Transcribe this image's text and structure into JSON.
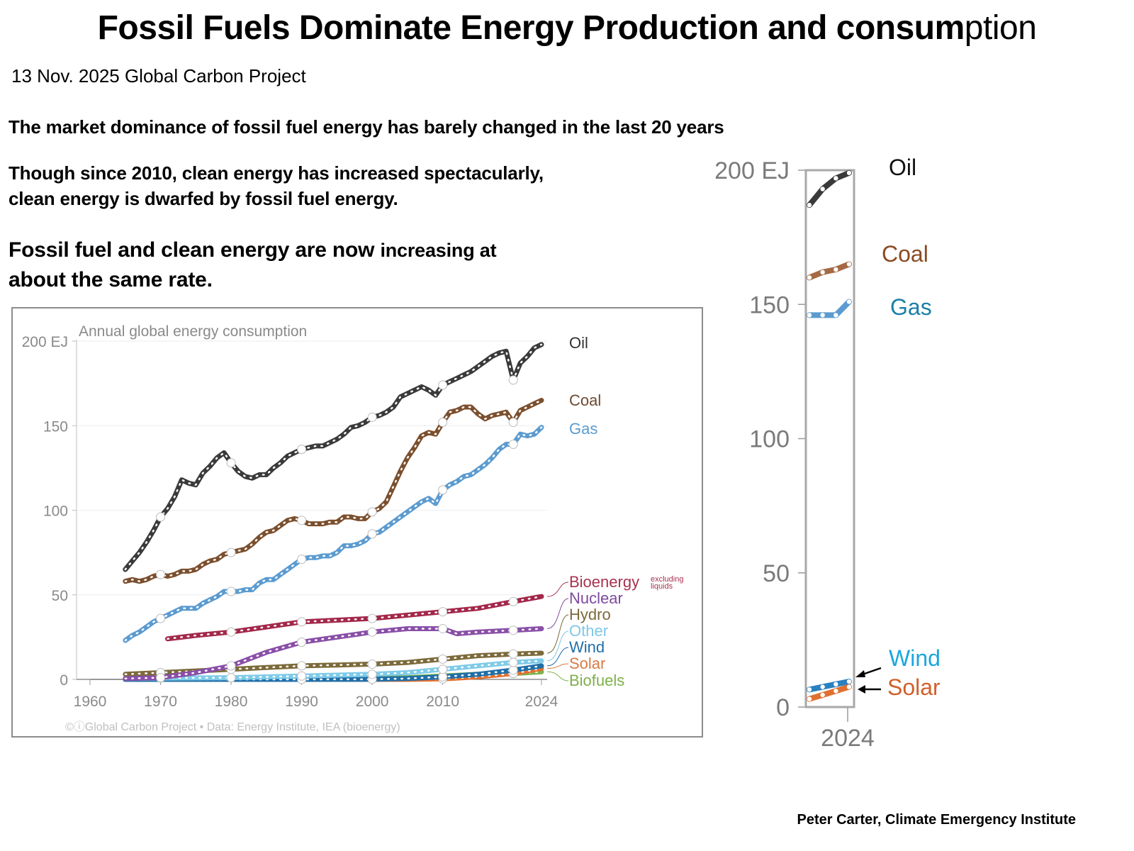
{
  "header": {
    "title_bold": "Fossil Fuels Dominate Energy Production and consum",
    "title_light": "ption",
    "dateline": "13 Nov. 2025 Global Carbon Project"
  },
  "text": {
    "p1": "The market dominance of fossil fuel energy has barely changed in the last 20 years",
    "p2_line1": "Though since 2010, clean energy has increased spectacularly,",
    "p2_line2": "clean energy is dwarfed by fossil fuel energy.",
    "p3_line1_a": "Fossil fuel and clean energy are now ",
    "p3_line1_b": "increasing at",
    "p3_line2": "about the same rate."
  },
  "credit": "Peter Carter, Climate Emergency Institute",
  "chart_data": [
    {
      "type": "line",
      "title": "Annual global energy consumption",
      "ylabel": "EJ",
      "xlim": [
        1960,
        2024
      ],
      "ylim": [
        0,
        200
      ],
      "x_ticks": [
        "1960",
        "1970",
        "1980",
        "1990",
        "2000",
        "2010",
        "2024"
      ],
      "y_ticks": [
        "0",
        "50",
        "100",
        "150",
        "200 EJ"
      ],
      "grid": true,
      "legend": "right (direct labels)",
      "footer": "©ⓘGlobal Carbon Project  •  Data: Energy Institute, IEA (bioenergy)",
      "bioenergy_note": "excluding liquids",
      "series": [
        {
          "name": "Oil",
          "color": "#3a3a3a",
          "label_color": "#333333",
          "x": [
            1965,
            1966,
            1967,
            1968,
            1969,
            1970,
            1971,
            1972,
            1973,
            1974,
            1975,
            1976,
            1977,
            1978,
            1979,
            1980,
            1981,
            1982,
            1983,
            1984,
            1985,
            1986,
            1987,
            1988,
            1989,
            1990,
            1991,
            1992,
            1993,
            1994,
            1995,
            1996,
            1997,
            1998,
            1999,
            2000,
            2001,
            2002,
            2003,
            2004,
            2005,
            2006,
            2007,
            2008,
            2009,
            2010,
            2011,
            2012,
            2013,
            2014,
            2015,
            2016,
            2017,
            2018,
            2019,
            2020,
            2021,
            2022,
            2023,
            2024
          ],
          "values": [
            65,
            70,
            75,
            81,
            88,
            96,
            101,
            108,
            118,
            116,
            115,
            122,
            126,
            131,
            134,
            128,
            123,
            120,
            119,
            121,
            121,
            125,
            128,
            132,
            134,
            136,
            137,
            138,
            138,
            140,
            142,
            145,
            149,
            150,
            152,
            155,
            156,
            158,
            161,
            167,
            169,
            171,
            173,
            171,
            168,
            174,
            176,
            178,
            180,
            182,
            185,
            188,
            191,
            193,
            194,
            177,
            187,
            191,
            196,
            198
          ]
        },
        {
          "name": "Coal",
          "color": "#7b4f2e",
          "label_color": "#6e4a30",
          "x": [
            1965,
            1966,
            1967,
            1968,
            1969,
            1970,
            1971,
            1972,
            1973,
            1974,
            1975,
            1976,
            1977,
            1978,
            1979,
            1980,
            1981,
            1982,
            1983,
            1984,
            1985,
            1986,
            1987,
            1988,
            1989,
            1990,
            1991,
            1992,
            1993,
            1994,
            1995,
            1996,
            1997,
            1998,
            1999,
            2000,
            2001,
            2002,
            2003,
            2004,
            2005,
            2006,
            2007,
            2008,
            2009,
            2010,
            2011,
            2012,
            2013,
            2014,
            2015,
            2016,
            2017,
            2018,
            2019,
            2020,
            2021,
            2022,
            2023,
            2024
          ],
          "values": [
            58,
            59,
            58,
            59,
            61,
            62,
            61,
            62,
            64,
            64,
            65,
            68,
            70,
            71,
            74,
            75,
            76,
            77,
            80,
            84,
            87,
            88,
            91,
            94,
            95,
            94,
            92,
            92,
            92,
            93,
            93,
            96,
            96,
            95,
            95,
            99,
            101,
            105,
            114,
            123,
            131,
            137,
            144,
            146,
            145,
            152,
            158,
            159,
            161,
            161,
            157,
            154,
            156,
            157,
            158,
            152,
            159,
            161,
            163,
            165
          ]
        },
        {
          "name": "Gas",
          "color": "#5b9bd0",
          "label_color": "#5b9bd0",
          "x": [
            1965,
            1966,
            1967,
            1968,
            1969,
            1970,
            1971,
            1972,
            1973,
            1974,
            1975,
            1976,
            1977,
            1978,
            1979,
            1980,
            1981,
            1982,
            1983,
            1984,
            1985,
            1986,
            1987,
            1988,
            1989,
            1990,
            1991,
            1992,
            1993,
            1994,
            1995,
            1996,
            1997,
            1998,
            1999,
            2000,
            2001,
            2002,
            2003,
            2004,
            2005,
            2006,
            2007,
            2008,
            2009,
            2010,
            2011,
            2012,
            2013,
            2014,
            2015,
            2016,
            2017,
            2018,
            2019,
            2020,
            2021,
            2022,
            2023,
            2024
          ],
          "values": [
            23,
            26,
            28,
            31,
            34,
            36,
            38,
            40,
            42,
            42,
            42,
            45,
            47,
            49,
            52,
            52,
            52,
            53,
            53,
            57,
            59,
            59,
            62,
            65,
            68,
            71,
            72,
            72,
            73,
            73,
            75,
            79,
            79,
            80,
            82,
            86,
            87,
            90,
            93,
            96,
            99,
            102,
            105,
            107,
            104,
            112,
            115,
            117,
            120,
            121,
            124,
            127,
            131,
            136,
            139,
            139,
            145,
            144,
            145,
            149
          ]
        },
        {
          "name": "Bioenergy",
          "color": "#a3284a",
          "label_color": "#a8324f",
          "x": [
            1971,
            1975,
            1980,
            1985,
            1990,
            1995,
            2000,
            2005,
            2010,
            2015,
            2020,
            2024
          ],
          "values": [
            24,
            26,
            28,
            31,
            34,
            35,
            36,
            38,
            40,
            42,
            46,
            49
          ]
        },
        {
          "name": "Nuclear",
          "color": "#8a4fa8",
          "label_color": "#7d4a9e",
          "x": [
            1965,
            1970,
            1975,
            1980,
            1985,
            1990,
            1995,
            2000,
            2005,
            2010,
            2012,
            2015,
            2020,
            2024
          ],
          "values": [
            0.5,
            1,
            4,
            8,
            16,
            22,
            25,
            28,
            30,
            30,
            27,
            28,
            29,
            30
          ]
        },
        {
          "name": "Hydro",
          "color": "#7c6a3a",
          "label_color": "#7c6a3a",
          "x": [
            1965,
            1970,
            1975,
            1980,
            1985,
            1990,
            1995,
            2000,
            2005,
            2010,
            2015,
            2020,
            2024
          ],
          "values": [
            3,
            4,
            5,
            6,
            7,
            8,
            8.5,
            9,
            10,
            12,
            14,
            15,
            15.5
          ]
        },
        {
          "name": "Other",
          "color": "#7fcbe8",
          "label_color": "#7fc7e6",
          "x": [
            1965,
            1970,
            1980,
            1990,
            2000,
            2005,
            2010,
            2015,
            2020,
            2024
          ],
          "values": [
            0.5,
            0.8,
            1,
            2,
            3,
            4,
            6,
            8,
            10,
            11
          ]
        },
        {
          "name": "Wind",
          "color": "#1f6fa8",
          "label_color": "#1f6fa8",
          "x": [
            1965,
            1990,
            2000,
            2005,
            2010,
            2015,
            2020,
            2024
          ],
          "values": [
            0,
            0,
            0.1,
            0.5,
            1.5,
            3,
            5.5,
            8
          ]
        },
        {
          "name": "Solar",
          "color": "#e07030",
          "label_color": "#d87b45",
          "x": [
            1965,
            2005,
            2010,
            2015,
            2020,
            2024
          ],
          "values": [
            0,
            0,
            0.3,
            1.5,
            3.5,
            6.5
          ]
        },
        {
          "name": "Biofuels",
          "color": "#7db04a",
          "label_color": "#7db04a",
          "x": [
            1965,
            1990,
            2000,
            2005,
            2010,
            2015,
            2020,
            2024
          ],
          "values": [
            0,
            0.3,
            0.5,
            1,
            2,
            3,
            3.5,
            4.5
          ]
        }
      ]
    },
    {
      "type": "line",
      "title": "Zoom on 2024",
      "ylabel": "EJ",
      "x_ticks": [
        "2024"
      ],
      "y_ticks": [
        "0",
        "50",
        "100",
        "150",
        "200 EJ"
      ],
      "ylim": [
        0,
        200
      ],
      "xlim": [
        2021,
        2024
      ],
      "series": [
        {
          "name": "Oil",
          "color": "#3a3a3a",
          "label_color": "#111111",
          "x": [
            2021,
            2022,
            2023,
            2024
          ],
          "values": [
            187,
            193,
            197,
            199
          ]
        },
        {
          "name": "Coal",
          "color": "#a56a44",
          "label_color": "#8b4a22",
          "x": [
            2021,
            2022,
            2023,
            2024
          ],
          "values": [
            160,
            162,
            163,
            165
          ]
        },
        {
          "name": "Gas",
          "color": "#5b9bd0",
          "label_color": "#1a7fa8",
          "x": [
            2021,
            2022,
            2023,
            2024
          ],
          "values": [
            146,
            146,
            146,
            151
          ]
        },
        {
          "name": "Wind",
          "color": "#2a80c0",
          "label_color": "#1aa7dd",
          "x": [
            2021,
            2022,
            2023,
            2024
          ],
          "values": [
            6.5,
            7.5,
            8.5,
            9.5
          ]
        },
        {
          "name": "Solar",
          "color": "#e07030",
          "label_color": "#d0602a",
          "x": [
            2021,
            2022,
            2023,
            2024
          ],
          "values": [
            3,
            4.5,
            6,
            7.5
          ]
        }
      ]
    }
  ]
}
